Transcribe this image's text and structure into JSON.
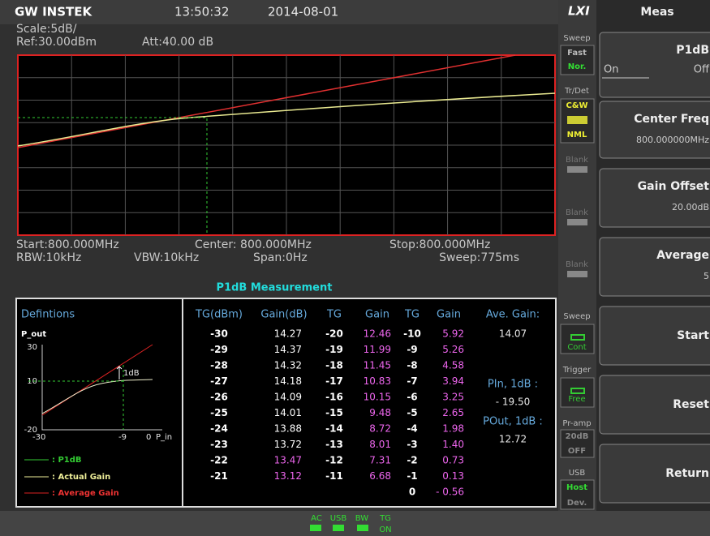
{
  "header": {
    "logo": "GW INSTEK",
    "time": "13:50:32",
    "date": "2014-08-01",
    "lxi": "LXI",
    "menu_title": "Meas"
  },
  "settings": {
    "scale": "Scale:5dB/",
    "ref": "Ref:30.00dBm",
    "att": "Att:40.00 dB",
    "start": "Start:800.000MHz",
    "center": "Center: 800.000MHz",
    "stop": "Stop:800.000MHz",
    "rbw": "RBW:10kHz",
    "vbw": "VBW:10kHz",
    "span": "Span:0Hz",
    "sweep": "Sweep:775ms"
  },
  "measurement": {
    "title": "P1dB Measurement",
    "definitions": {
      "title": "Defintions",
      "y_label": "P_out",
      "y_ticks": [
        "30",
        "10",
        "-20"
      ],
      "x_ticks": [
        "-30",
        "-9",
        "0"
      ],
      "x_label": "P_in",
      "marker": "1dB",
      "legend": [
        ": P1dB",
        ": Actual Gain",
        ": Average Gain"
      ]
    },
    "columns": [
      "TG(dBm)",
      "Gain(dB)",
      "TG",
      "Gain",
      "TG",
      "Gain"
    ],
    "groups": [
      [
        [
          "-30",
          "14.27"
        ],
        [
          "-29",
          "14.37"
        ],
        [
          "-28",
          "14.32"
        ],
        [
          "-27",
          "14.18"
        ],
        [
          "-26",
          "14.09"
        ],
        [
          "-25",
          "14.01"
        ],
        [
          "-24",
          "13.88"
        ],
        [
          "-23",
          "13.72"
        ],
        [
          "-22",
          "13.47"
        ],
        [
          "-21",
          "13.12"
        ]
      ],
      [
        [
          "-20",
          "12.46"
        ],
        [
          "-19",
          "11.99"
        ],
        [
          "-18",
          "11.45"
        ],
        [
          "-17",
          "10.83"
        ],
        [
          "-16",
          "10.15"
        ],
        [
          "-15",
          "9.48"
        ],
        [
          "-14",
          "8.72"
        ],
        [
          "-13",
          "8.01"
        ],
        [
          "-12",
          "7.31"
        ],
        [
          "-11",
          "6.68"
        ]
      ],
      [
        [
          "-10",
          "5.92"
        ],
        [
          "-9",
          "5.26"
        ],
        [
          "-8",
          "4.58"
        ],
        [
          "-7",
          "3.94"
        ],
        [
          "-6",
          "3.25"
        ],
        [
          "-5",
          "2.65"
        ],
        [
          "-4",
          "1.98"
        ],
        [
          "-3",
          "1.40"
        ],
        [
          "-2",
          "0.73"
        ],
        [
          "-1",
          "0.13"
        ],
        [
          "0",
          "- 0.56"
        ]
      ]
    ],
    "ave_gain_label": "Ave. Gain:",
    "ave_gain": "14.07",
    "pin_label": "PIn, 1dB :",
    "pin": "- 19.50",
    "pout_label": "POut, 1dB :",
    "pout": "12.72"
  },
  "status": [
    "Sweep",
    "Fast",
    "Nor.",
    "Tr/Det",
    "C&W",
    "NML",
    "Blank",
    "Blank",
    "Blank",
    "Sweep",
    "Cont",
    "Trigger",
    "Free",
    "Pr-amp",
    "20dB",
    "OFF",
    "USB",
    "Host",
    "Dev."
  ],
  "softkeys": [
    {
      "label": "P1dB",
      "on": "On",
      "off": "Off"
    },
    {
      "label": "Center Freq",
      "value": "800.000000MHz"
    },
    {
      "label": "Gain Offset",
      "value": "20.00dB"
    },
    {
      "label": "Average",
      "value": "5"
    },
    {
      "label": "Start"
    },
    {
      "label": "Reset"
    },
    {
      "label": "Return"
    }
  ],
  "bottom": [
    "AC",
    "USB",
    "BW",
    "TG",
    "ON"
  ]
}
